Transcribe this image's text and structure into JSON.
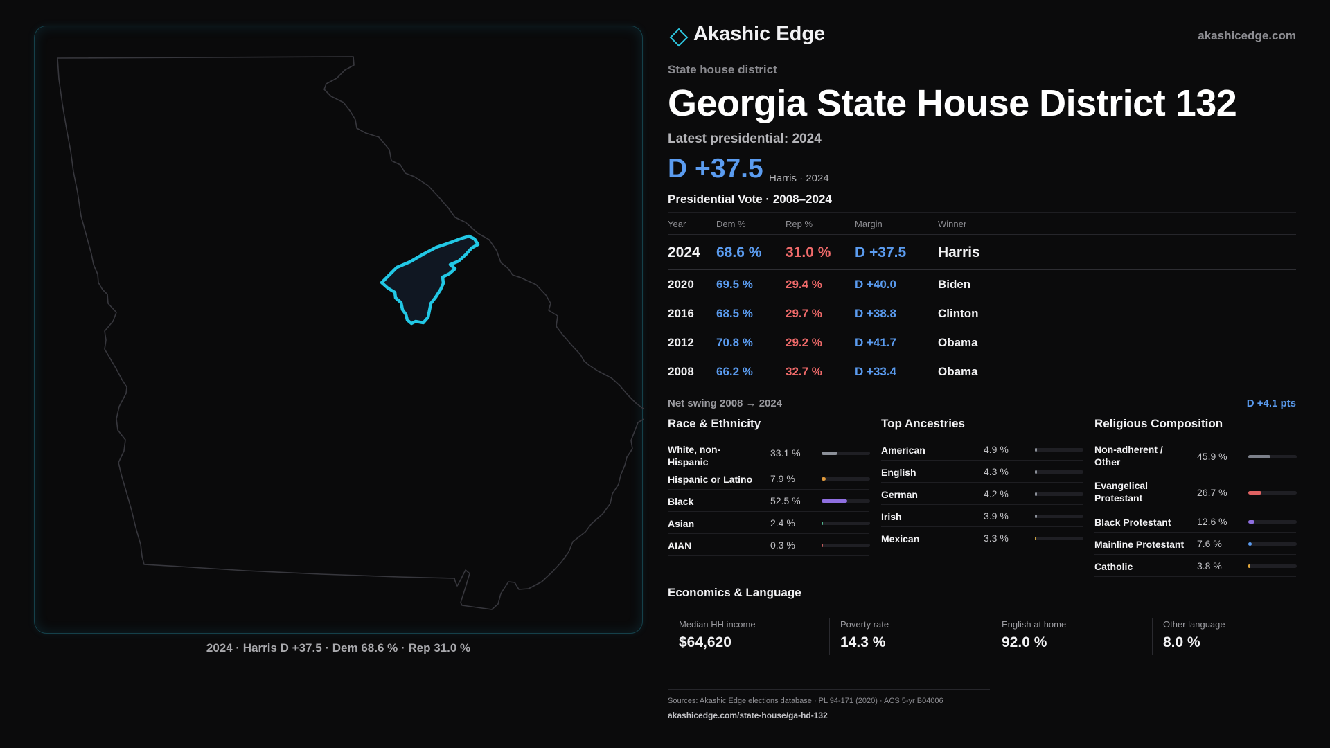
{
  "brand": {
    "name": "Akashic Edge",
    "url": "akashicedge.com",
    "accent": "#2ec7e0"
  },
  "header": {
    "kicker": "State house district",
    "title": "Georgia State House District 132",
    "latest": "Latest presidential: 2024",
    "margin": "D +37.5",
    "margin_sub": "Harris · 2024"
  },
  "map": {
    "state": "Georgia",
    "caption": "2024 · Harris D +37.5 · Dem 68.6 % · Rep 31.0 %",
    "highlight_color": "#22c8e5"
  },
  "presidential": {
    "title": "Presidential Vote · 2008–2024",
    "headers": [
      "Year",
      "Dem %",
      "Rep %",
      "Margin",
      "Winner"
    ],
    "rows": [
      {
        "year": "2024",
        "dem": "68.6 %",
        "rep": "31.0 %",
        "margin": "D +37.5",
        "winner": "Harris"
      },
      {
        "year": "2020",
        "dem": "69.5 %",
        "rep": "29.4 %",
        "margin": "D +40.0",
        "winner": "Biden"
      },
      {
        "year": "2016",
        "dem": "68.5 %",
        "rep": "29.7 %",
        "margin": "D +38.8",
        "winner": "Clinton"
      },
      {
        "year": "2012",
        "dem": "70.8 %",
        "rep": "29.2 %",
        "margin": "D +41.7",
        "winner": "Obama"
      },
      {
        "year": "2008",
        "dem": "66.2 %",
        "rep": "32.7 %",
        "margin": "D +33.4",
        "winner": "Obama"
      }
    ],
    "swing_label": "Net swing 2008 → 2024",
    "swing_value": "D +4.1 pts"
  },
  "race": {
    "title": "Race & Ethnicity",
    "items": [
      {
        "label": "White, non-Hispanic",
        "pct": "33.1 %",
        "value": 33.1,
        "color": "#8c9099"
      },
      {
        "label": "Hispanic or Latino",
        "pct": "7.9 %",
        "value": 7.9,
        "color": "#e09a3c"
      },
      {
        "label": "Black",
        "pct": "52.5 %",
        "value": 52.5,
        "color": "#8f6fe0"
      },
      {
        "label": "Asian",
        "pct": "2.4 %",
        "value": 2.4,
        "color": "#4fb58c"
      },
      {
        "label": "AIAN",
        "pct": "0.3 %",
        "value": 0.3,
        "color": "#c05a5a"
      }
    ]
  },
  "ancestry": {
    "title": "Top Ancestries",
    "items": [
      {
        "label": "American",
        "pct": "4.9 %",
        "value": 4.9,
        "color": "#8c9099"
      },
      {
        "label": "English",
        "pct": "4.3 %",
        "value": 4.3,
        "color": "#8c9099"
      },
      {
        "label": "German",
        "pct": "4.2 %",
        "value": 4.2,
        "color": "#8c9099"
      },
      {
        "label": "Irish",
        "pct": "3.9 %",
        "value": 3.9,
        "color": "#8c9099"
      },
      {
        "label": "Mexican",
        "pct": "3.3 %",
        "value": 3.3,
        "color": "#c9a040"
      }
    ]
  },
  "religion": {
    "title": "Religious Composition",
    "items": [
      {
        "label": "Non-adherent / Other",
        "pct": "45.9 %",
        "value": 45.9,
        "color": "#7c808a"
      },
      {
        "label": "Evangelical Protestant",
        "pct": "26.7 %",
        "value": 26.7,
        "color": "#e06262"
      },
      {
        "label": "Black Protestant",
        "pct": "12.6 %",
        "value": 12.6,
        "color": "#8f6fe0"
      },
      {
        "label": "Mainline Protestant",
        "pct": "7.6 %",
        "value": 7.6,
        "color": "#5b9cf0"
      },
      {
        "label": "Catholic",
        "pct": "3.8 %",
        "value": 3.8,
        "color": "#e0a63c"
      }
    ]
  },
  "economics": {
    "title": "Economics & Language",
    "cells": [
      {
        "label": "Median HH income",
        "value": "$64,620"
      },
      {
        "label": "Poverty rate",
        "value": "14.3 %"
      },
      {
        "label": "English at home",
        "value": "92.0 %"
      },
      {
        "label": "Other language",
        "value": "8.0 %"
      }
    ]
  },
  "sources": {
    "line1": "Sources: Akashic Edge elections database · PL 94-171 (2020) · ACS 5-yr B04006",
    "line2": "akashicedge.com/state-house/ga-hd-132"
  },
  "colors": {
    "dem": "#5b9cf0",
    "rep": "#ef6a6a",
    "background": "#0b0b0c"
  }
}
